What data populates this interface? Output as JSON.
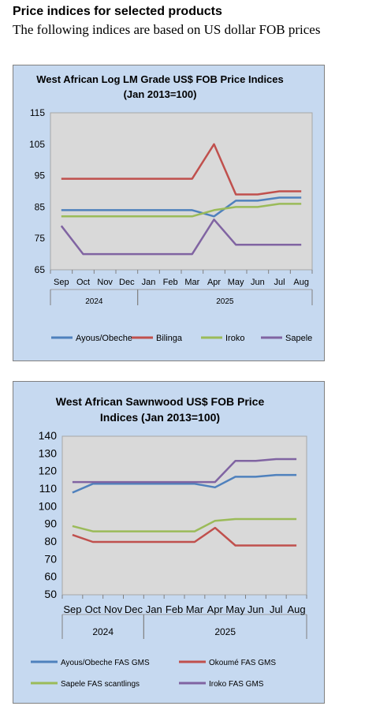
{
  "page": {
    "heading": "Price indices for selected products",
    "subheading": "The following indices are based on US dollar FOB prices"
  },
  "chart_data": [
    {
      "type": "line",
      "title": [
        "West African Log LM Grade US$ FOB Price Indices",
        "(Jan 2013=100)"
      ],
      "categories": [
        "Sep",
        "Oct",
        "Nov",
        "Dec",
        "Jan",
        "Feb",
        "Mar",
        "Apr",
        "May",
        "Jun",
        "Jul",
        "Aug"
      ],
      "year_groups": [
        {
          "label": "2024",
          "start": 0,
          "end": 3
        },
        {
          "label": "2025",
          "start": 4,
          "end": 11
        }
      ],
      "ylim": [
        65,
        115
      ],
      "yticks": [
        65,
        75,
        85,
        95,
        105,
        115
      ],
      "grid": false,
      "legend_position": "bottom",
      "series": [
        {
          "name": "Ayous/Obeche",
          "color": "#4f81bd",
          "values": [
            84,
            84,
            84,
            84,
            84,
            84,
            84,
            82,
            87,
            87,
            88,
            88
          ]
        },
        {
          "name": "Bilinga",
          "color": "#c0504d",
          "values": [
            94,
            94,
            94,
            94,
            94,
            94,
            94,
            105,
            89,
            89,
            90,
            90
          ]
        },
        {
          "name": "Iroko",
          "color": "#9bbb59",
          "values": [
            82,
            82,
            82,
            82,
            82,
            82,
            82,
            84,
            85,
            85,
            86,
            86
          ]
        },
        {
          "name": "Sapele",
          "color": "#8064a2",
          "values": [
            79,
            70,
            70,
            70,
            70,
            70,
            70,
            81,
            73,
            73,
            73,
            73
          ]
        }
      ]
    },
    {
      "type": "line",
      "title": [
        "West African Sawnwood US$ FOB Price",
        "Indices (Jan 2013=100)"
      ],
      "categories": [
        "Sep",
        "Oct",
        "Nov",
        "Dec",
        "Jan",
        "Feb",
        "Mar",
        "Apr",
        "May",
        "Jun",
        "Jul",
        "Aug"
      ],
      "year_groups": [
        {
          "label": "2024",
          "start": 0,
          "end": 3
        },
        {
          "label": "2025",
          "start": 4,
          "end": 11
        }
      ],
      "ylim": [
        50,
        140
      ],
      "yticks": [
        50,
        60,
        70,
        80,
        90,
        100,
        110,
        120,
        130,
        140
      ],
      "grid": false,
      "legend_position": "bottom",
      "series": [
        {
          "name": "Ayous/Obeche  FAS GMS",
          "color": "#4f81bd",
          "values": [
            108,
            113,
            113,
            113,
            113,
            113,
            113,
            111,
            117,
            117,
            118,
            118
          ]
        },
        {
          "name": "Okoumé  FAS GMS",
          "color": "#c0504d",
          "values": [
            84,
            80,
            80,
            80,
            80,
            80,
            80,
            88,
            78,
            78,
            78,
            78
          ]
        },
        {
          "name": "Sapele FAS scantlings",
          "color": "#9bbb59",
          "values": [
            89,
            86,
            86,
            86,
            86,
            86,
            86,
            92,
            93,
            93,
            93,
            93
          ]
        },
        {
          "name": "Iroko FAS GMS",
          "color": "#8064a2",
          "values": [
            114,
            114,
            114,
            114,
            114,
            114,
            114,
            114,
            126,
            126,
            127,
            127
          ]
        }
      ]
    }
  ]
}
